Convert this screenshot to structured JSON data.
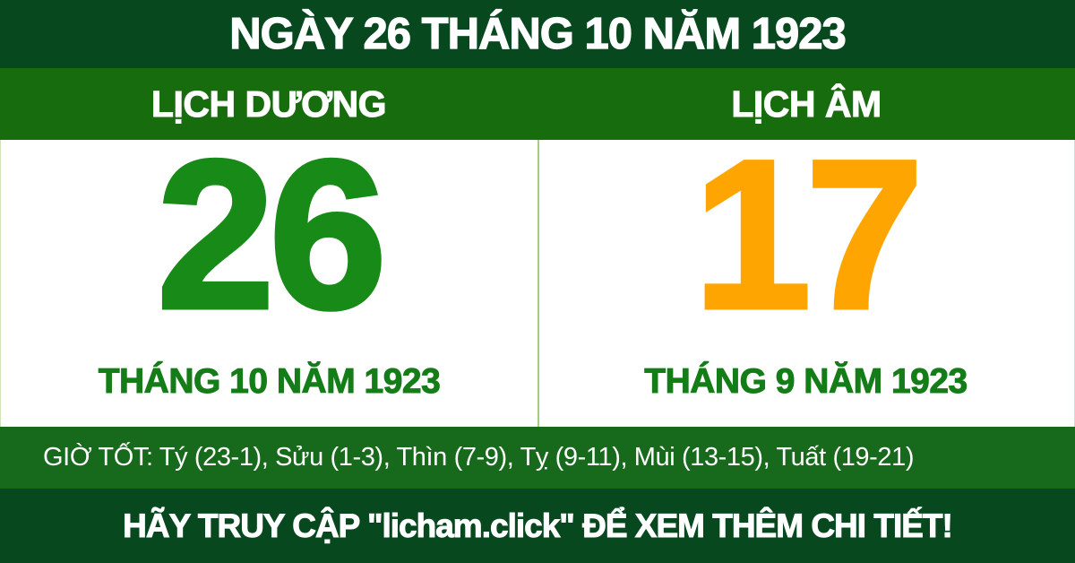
{
  "top_bar": {
    "title": "NGÀY 26 THÁNG 10 NĂM 1923"
  },
  "calendar": {
    "solar": {
      "header": "LỊCH DƯƠNG",
      "day": "26",
      "month_year": "THÁNG 10 NĂM 1923"
    },
    "lunar": {
      "header": "LỊCH ÂM",
      "day": "17",
      "month_year": "THÁNG 9 NĂM 1923"
    }
  },
  "good_hours": {
    "text": "GIỜ TỐT: Tý (23-1), Sửu (1-3), Thìn (7-9), Tỵ (9-11), Mùi (13-15), Tuất (19-21)"
  },
  "footer": {
    "cta": "HÃY TRUY CẬP \"licham.click\" ĐỂ XEM THÊM CHI TIẾT!"
  },
  "colors": {
    "dark_green": "#07481f",
    "header_green": "#176c0e",
    "hours_green": "#17691b",
    "solar_day_green": "#178a17",
    "month_text_green": "#157d18",
    "lunar_day_orange": "#ffa502",
    "divider_light_green": "#a6cc7c"
  }
}
